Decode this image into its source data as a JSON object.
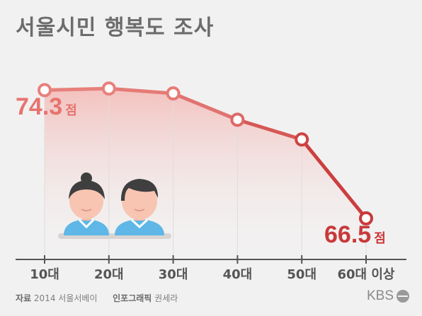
{
  "title": "서울시민 행복도 조사",
  "chart_data": {
    "type": "line",
    "categories": [
      "10대",
      "20대",
      "30대",
      "40대",
      "50대",
      "60대 이상"
    ],
    "series": [
      {
        "values": [
          74.3,
          74.4,
          74.1,
          72.5,
          71.3,
          66.5
        ]
      }
    ],
    "labels": [
      {
        "index": 0,
        "number": "74.3",
        "unit": "점"
      },
      {
        "index": 5,
        "number": "66.5",
        "unit": "점"
      }
    ],
    "ylim": [
      64,
      76
    ],
    "colors": {
      "light": "#e7736f",
      "dark": "#c8393a"
    }
  },
  "footer": {
    "source_label": "자료",
    "source": "2014 서울서베이",
    "graphic_label": "인포그래픽",
    "graphic_author": "권세라"
  },
  "logo": {
    "text": "KBS"
  },
  "illustration": [
    "woman-avatar-icon",
    "man-avatar-icon"
  ]
}
